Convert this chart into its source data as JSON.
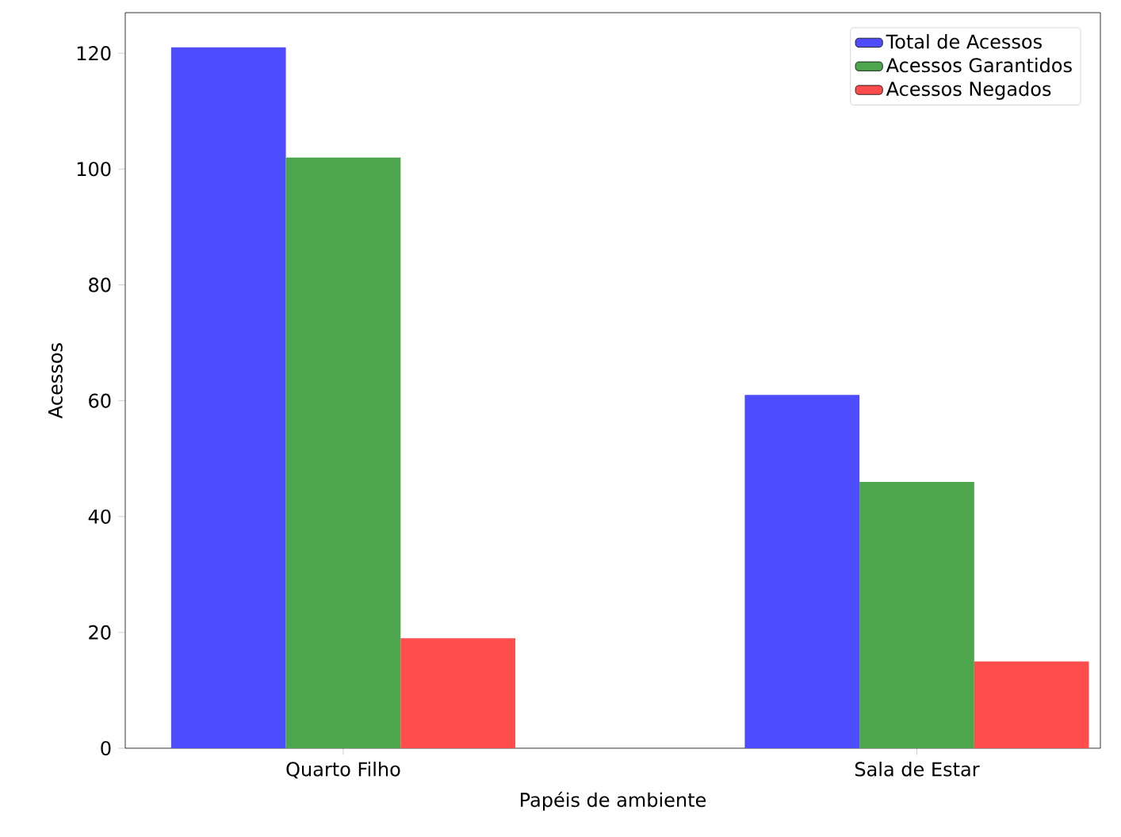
{
  "chart_data": {
    "type": "bar",
    "xlabel": "Papéis de ambiente",
    "ylabel": "Acessos",
    "categories": [
      "Quarto Filho",
      "Sala de Estar"
    ],
    "series": [
      {
        "name": "Total de Acessos",
        "color": "#4d4dff",
        "values": [
          121,
          61
        ]
      },
      {
        "name": "Acessos Garantidos",
        "color": "#4da64d",
        "values": [
          102,
          46
        ]
      },
      {
        "name": "Acessos Negados",
        "color": "#ff4d4d",
        "values": [
          19,
          15
        ]
      }
    ],
    "ylim": [
      0,
      127
    ],
    "yticks": [
      0,
      20,
      40,
      60,
      80,
      100,
      120
    ],
    "grid": false,
    "legend": "top right"
  }
}
